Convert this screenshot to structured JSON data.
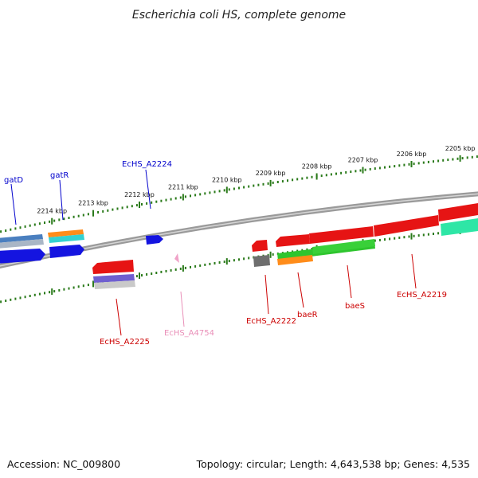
{
  "header": {
    "title": "Escherichia coli HS, complete genome"
  },
  "footer": {
    "accession": "Accession: NC_009800",
    "summary": "Topology: circular; Length: 4,643,538 bp; Genes: 4,535"
  },
  "colors": {
    "forward_label": "#0000cc",
    "reverse_label": "#cc0000",
    "rna_label": "#e98fb8",
    "tick": "#2a7a1a",
    "backbone": "#8a8a8a"
  },
  "scale": {
    "ticks": [
      {
        "label": "2214 kbp"
      },
      {
        "label": "2213 kbp"
      },
      {
        "label": "2212 kbp"
      },
      {
        "label": "2211 kbp"
      },
      {
        "label": "2210 kbp"
      },
      {
        "label": "2209 kbp"
      },
      {
        "label": "2208 kbp"
      },
      {
        "label": "2207 kbp"
      },
      {
        "label": "2206 kbp"
      },
      {
        "label": "2205 kbp"
      }
    ]
  },
  "gene_labels": [
    {
      "name": "gatD",
      "strand": "forward"
    },
    {
      "name": "gatR",
      "strand": "forward"
    },
    {
      "name": "EcHS_A2224",
      "strand": "forward"
    },
    {
      "name": "EcHS_A2225",
      "strand": "reverse"
    },
    {
      "name": "EcHS_A4754",
      "strand": "rna"
    },
    {
      "name": "EcHS_A2222",
      "strand": "reverse"
    },
    {
      "name": "baeR",
      "strand": "reverse"
    },
    {
      "name": "baeS",
      "strand": "reverse"
    },
    {
      "name": "EcHS_A2219",
      "strand": "reverse"
    }
  ]
}
